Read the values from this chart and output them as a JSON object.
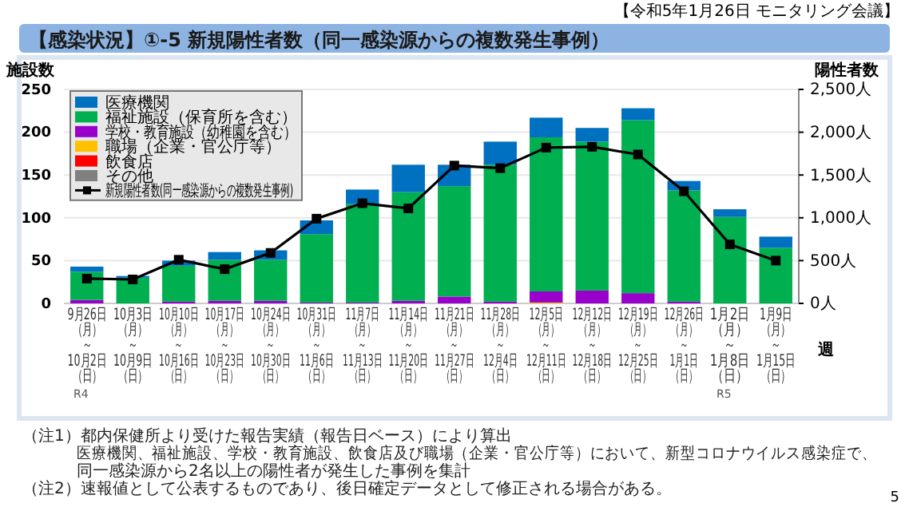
{
  "chart_data": {
    "type": "bar",
    "stacked": true,
    "title": "【感染状況】①-5 新規陽性者数（同一感染源からの複数発生事例）",
    "ylabel": "施設数",
    "y2label": "陽性者数",
    "xlabel": "週",
    "categories": [
      "9月26日（月）～10月2日（日）",
      "10月3日（月）～10月9日（日）",
      "10月10日（月）～10月16日（日）",
      "10月17日（月）～10月23日（日）",
      "10月24日（月）～10月30日（日）",
      "10月31日（月）～11月6日（日）",
      "11月7日（月）～11月13日（日）",
      "11月14日（月）～11月20日（日）",
      "11月21日（月）～11月27日（日）",
      "11月28日（月）～12月4日（日）",
      "12月5日（月）～12月11日（日）",
      "12月12日（月）～12月18日（日）",
      "12月19日（月）～12月25日（日）",
      "12月26日（月）～1月1日（日）",
      "1月2日（月）～1月8日（日）",
      "1月9日（月）～1月15日（日）"
    ],
    "series": [
      {
        "name": "その他",
        "color": "#808080",
        "values": [
          0,
          0,
          0,
          0,
          0,
          0,
          0,
          0,
          0,
          0,
          0,
          0,
          0,
          0,
          0,
          0
        ]
      },
      {
        "name": "飲食店",
        "color": "#ff0000",
        "values": [
          0,
          0,
          0,
          0,
          0,
          0,
          0,
          0,
          0,
          0,
          0,
          0,
          0,
          0,
          0,
          0
        ]
      },
      {
        "name": "職場（企業・官公庁等）",
        "color": "#ffc000",
        "values": [
          0,
          0,
          0,
          0,
          0,
          0,
          0,
          0,
          0,
          0,
          1,
          0,
          0,
          0,
          0,
          0
        ]
      },
      {
        "name": "学校・教育施設（幼稚園を含む）",
        "color": "#9900cc",
        "values": [
          4,
          0,
          2,
          3,
          3,
          1,
          1,
          3,
          8,
          2,
          13,
          15,
          12,
          2,
          0,
          0
        ]
      },
      {
        "name": "福祉施設（保育所を含む）",
        "color": "#00b050",
        "values": [
          33,
          30,
          42,
          48,
          48,
          80,
          115,
          127,
          129,
          160,
          180,
          174,
          202,
          130,
          101,
          65
        ]
      },
      {
        "name": "医療機関",
        "color": "#0070c0",
        "values": [
          6,
          2,
          6,
          9,
          11,
          16,
          17,
          32,
          25,
          27,
          23,
          16,
          14,
          11,
          9,
          13
        ]
      },
      {
        "name": "新規陽性者数(同一感染源からの複数発生事例)",
        "type": "line",
        "axis": "y2",
        "color": "#000000",
        "marker": "square",
        "values": [
          290,
          280,
          510,
          400,
          590,
          990,
          1170,
          1110,
          1610,
          1580,
          1820,
          1830,
          1740,
          1310,
          690,
          500
        ]
      }
    ],
    "ylim": [
      0,
      250
    ],
    "yticks": [
      0,
      50,
      100,
      150,
      200,
      250
    ],
    "y2lim": [
      0,
      2500
    ],
    "y2ticks": [
      {
        "value": 0,
        "label": "0人"
      },
      {
        "value": 500,
        "label": "500人"
      },
      {
        "value": 1000,
        "label": "1,000人"
      },
      {
        "value": 1500,
        "label": "1,500人"
      },
      {
        "value": 2000,
        "label": "2,000人"
      },
      {
        "value": 2500,
        "label": "2,500人"
      }
    ],
    "grid": "y",
    "legend": "top left",
    "annotations": [
      "【令和5年1月26日 モニタリング会議】",
      "（注1）都内保健所より受けた報告実績（報告日ベース）により算出",
      "医療機関、福祉施設、学校・教育施設、飲食店及び職場（企業・官公庁等）において、新型コロナウイルス感染症で、",
      "同一感染源から2名以上の陽性者が発生した事例を集計",
      "（注2）速報値として公表するものであり、後日確定データとして修正される場合がある。",
      "5",
      "R4",
      "R5"
    ]
  }
}
